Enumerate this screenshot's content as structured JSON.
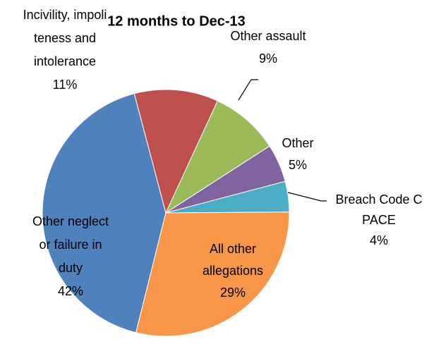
{
  "chart_data": {
    "type": "pie",
    "title": "12 months to Dec-13",
    "categories": [
      [
        "Other neglect",
        "or failure in",
        "duty"
      ],
      [
        "Incivility, impoli",
        "teness and",
        "intolerance"
      ],
      [
        "Other assault"
      ],
      [
        "Other"
      ],
      [
        "Breach Code C",
        "PACE"
      ],
      [
        "All other",
        "allegations"
      ]
    ],
    "values": [
      42,
      11,
      9,
      5,
      4,
      29
    ],
    "value_labels": [
      "42%",
      "11%",
      "9%",
      "5%",
      "4%",
      "29%"
    ],
    "colors": [
      "#4f81bd",
      "#c0504d",
      "#9bbb59",
      "#8064a2",
      "#4bacc6",
      "#f79646"
    ]
  }
}
